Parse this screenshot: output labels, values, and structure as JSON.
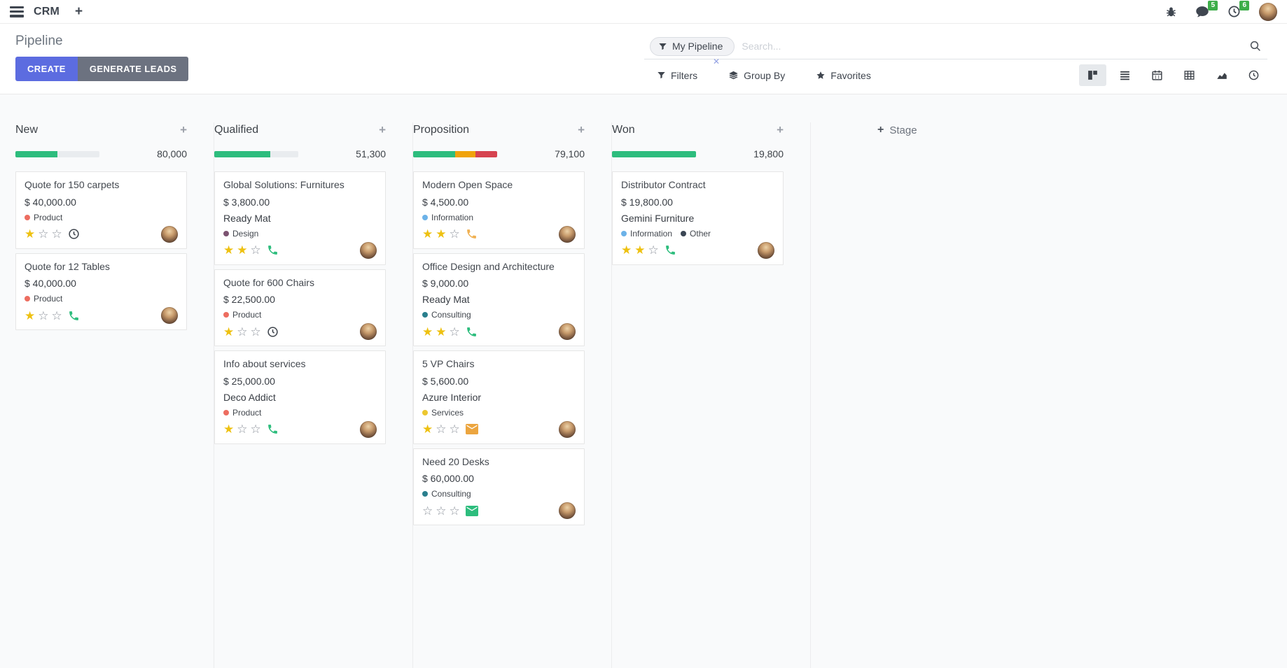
{
  "navbar": {
    "app_name": "CRM",
    "message_count": "5",
    "activity_count": "6"
  },
  "control_panel": {
    "title": "Pipeline",
    "create_label": "CREATE",
    "generate_label": "GENERATE LEADS",
    "search": {
      "facet_label": "My Pipeline",
      "placeholder": "Search..."
    },
    "toolbar": {
      "filters": "Filters",
      "group_by": "Group By",
      "favorites": "Favorites"
    }
  },
  "colors": {
    "primary": "#5c6ce0",
    "secondary": "#6c7280",
    "progress_green": "#2dbd7d",
    "progress_amber": "#f0a30b",
    "progress_red": "#d6434f",
    "badge_green": "#3dae49",
    "star_gold": "#eec111"
  },
  "board": {
    "add_stage_label": "Stage",
    "columns": [
      {
        "name": "New",
        "total": "80,000",
        "progress": [
          {
            "color": "#2dbd7d",
            "pct": 50
          }
        ],
        "cards": [
          {
            "title": "Quote for 150 carpets",
            "amount": "$ 40,000.00",
            "partner": "",
            "tags": [
              {
                "label": "Product",
                "color": "#ed6d60"
              }
            ],
            "stars": 1,
            "activity": {
              "type": "clock",
              "color": "#3f454d"
            }
          },
          {
            "title": "Quote for 12 Tables",
            "amount": "$ 40,000.00",
            "partner": "",
            "tags": [
              {
                "label": "Product",
                "color": "#ed6d60"
              }
            ],
            "stars": 1,
            "activity": {
              "type": "phone",
              "color": "#2dbd7d"
            }
          }
        ]
      },
      {
        "name": "Qualified",
        "total": "51,300",
        "progress": [
          {
            "color": "#2dbd7d",
            "pct": 67
          }
        ],
        "cards": [
          {
            "title": "Global Solutions: Furnitures",
            "amount": "$ 3,800.00",
            "partner": "Ready Mat",
            "tags": [
              {
                "label": "Design",
                "color": "#7c5371"
              }
            ],
            "stars": 2,
            "activity": {
              "type": "phone",
              "color": "#2dbd7d"
            }
          },
          {
            "title": "Quote for 600 Chairs",
            "amount": "$ 22,500.00",
            "partner": "",
            "tags": [
              {
                "label": "Product",
                "color": "#ed6d60"
              }
            ],
            "stars": 1,
            "activity": {
              "type": "clock",
              "color": "#3f454d"
            }
          },
          {
            "title": "Info about services",
            "amount": "$ 25,000.00",
            "partner": "Deco Addict",
            "tags": [
              {
                "label": "Product",
                "color": "#ed6d60"
              }
            ],
            "stars": 1,
            "activity": {
              "type": "phone",
              "color": "#2dbd7d"
            }
          }
        ]
      },
      {
        "name": "Proposition",
        "total": "79,100",
        "progress": [
          {
            "color": "#2dbd7d",
            "pct": 50
          },
          {
            "color": "#f0a30b",
            "pct": 24
          },
          {
            "color": "#d6434f",
            "pct": 26
          }
        ],
        "cards": [
          {
            "title": "Modern Open Space",
            "amount": "$ 4,500.00",
            "partner": "",
            "tags": [
              {
                "label": "Information",
                "color": "#6cb2e8"
              }
            ],
            "stars": 2,
            "activity": {
              "type": "phone",
              "color": "#f0b153"
            }
          },
          {
            "title": "Office Design and Architecture",
            "amount": "$ 9,000.00",
            "partner": "Ready Mat",
            "tags": [
              {
                "label": "Consulting",
                "color": "#2a7f8d"
              }
            ],
            "stars": 2,
            "activity": {
              "type": "phone",
              "color": "#2dbd7d"
            }
          },
          {
            "title": "5 VP Chairs",
            "amount": "$ 5,600.00",
            "partner": "Azure Interior",
            "tags": [
              {
                "label": "Services",
                "color": "#ecc72f"
              }
            ],
            "stars": 1,
            "activity": {
              "type": "envelope",
              "color": "#eca53f"
            }
          },
          {
            "title": "Need 20 Desks",
            "amount": "$ 60,000.00",
            "partner": "",
            "tags": [
              {
                "label": "Consulting",
                "color": "#2a7f8d"
              }
            ],
            "stars": 0,
            "activity": {
              "type": "envelope",
              "color": "#2dbd7d"
            }
          }
        ]
      },
      {
        "name": "Won",
        "total": "19,800",
        "progress": [
          {
            "color": "#2dbd7d",
            "pct": 100
          }
        ],
        "cards": [
          {
            "title": "Distributor Contract",
            "amount": "$ 19,800.00",
            "partner": "Gemini Furniture",
            "tags": [
              {
                "label": "Information",
                "color": "#6cb2e8"
              },
              {
                "label": "Other",
                "color": "#3b4654"
              }
            ],
            "stars": 2,
            "activity": {
              "type": "phone",
              "color": "#2dbd7d"
            }
          }
        ]
      }
    ]
  }
}
